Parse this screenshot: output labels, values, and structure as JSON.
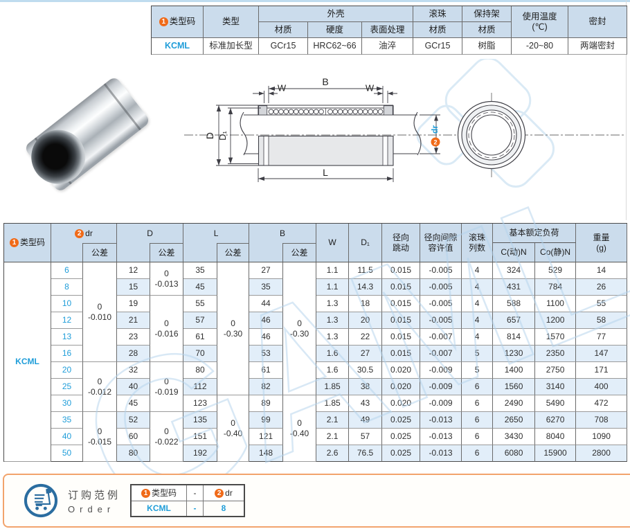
{
  "colors": {
    "accent_blue": "#1f9dd9",
    "badge_orange": "#f06a18",
    "header_bg": "#cbdcec",
    "stripe_bg": "#e2eef9",
    "order_border": "#f2a36c",
    "cart_blue": "#2b6da0"
  },
  "spec_table": {
    "badge1": "1",
    "h_type_code": "类型码",
    "h_type": "类型",
    "h_shell": "外壳",
    "h_material": "材质",
    "h_hardness": "硬度",
    "h_surface": "表面处理",
    "h_ball": "滚珠",
    "h_cage": "保持架",
    "h_temp": "使用温度\n(℃)",
    "h_seal": "密封",
    "type_code": "KCML",
    "type": "标准加长型",
    "shell_material": "GCr15",
    "hardness": "HRC62~66",
    "surface": "油淬",
    "ball_material": "GCr15",
    "cage_material": "树脂",
    "temp": "-20~80",
    "seal": "两端密封"
  },
  "drawing": {
    "dim_B": "B",
    "dim_W_left": "W",
    "dim_W_right": "W",
    "dim_D": "D",
    "dim_D1": "D₁",
    "dim_L": "L",
    "dim_dr": "dr",
    "badge2": "2"
  },
  "main_table": {
    "badge1": "1",
    "badge2": "2",
    "h_type_code": "类型码",
    "h_dr": "dr",
    "h_tol": "公差",
    "h_D": "D",
    "h_L": "L",
    "h_B": "B",
    "h_W": "W",
    "h_D1": "D₁",
    "h_runout": "径向\n跳动",
    "h_clearance": "径向间隙\n容许值",
    "h_ball_rows": "滚珠\n列数",
    "h_load": "基本额定负荷",
    "h_load_dyn": "C(动)N",
    "h_load_stat": "Co(静)N",
    "h_weight": "重量\n(g)",
    "type_code": "KCML",
    "rows": [
      [
        "6",
        "12",
        "35",
        "27",
        "1.1",
        "11.5",
        "0.015",
        "-0.005",
        "4",
        "324",
        "529",
        "14"
      ],
      [
        "8",
        "15",
        "45",
        "35",
        "1.1",
        "14.3",
        "0.015",
        "-0.005",
        "4",
        "431",
        "784",
        "26"
      ],
      [
        "10",
        "19",
        "55",
        "44",
        "1.3",
        "18",
        "0.015",
        "-0.005",
        "4",
        "588",
        "1100",
        "55"
      ],
      [
        "12",
        "21",
        "57",
        "46",
        "1.3",
        "20",
        "0.015",
        "-0.005",
        "4",
        "657",
        "1200",
        "58"
      ],
      [
        "13",
        "23",
        "61",
        "46",
        "1.3",
        "22",
        "0.015",
        "-0.007",
        "4",
        "814",
        "1570",
        "77"
      ],
      [
        "16",
        "28",
        "70",
        "53",
        "1.6",
        "27",
        "0.015",
        "-0.007",
        "5",
        "1230",
        "2350",
        "147"
      ],
      [
        "20",
        "32",
        "80",
        "61",
        "1.6",
        "30.5",
        "0.020",
        "-0.009",
        "5",
        "1400",
        "2750",
        "171"
      ],
      [
        "25",
        "40",
        "112",
        "82",
        "1.85",
        "38",
        "0.020",
        "-0.009",
        "6",
        "1560",
        "3140",
        "400"
      ],
      [
        "30",
        "45",
        "123",
        "89",
        "1.85",
        "43",
        "0.020",
        "-0.009",
        "6",
        "2490",
        "5490",
        "472"
      ],
      [
        "35",
        "52",
        "135",
        "99",
        "2.1",
        "49",
        "0.025",
        "-0.013",
        "6",
        "2650",
        "6270",
        "708"
      ],
      [
        "40",
        "60",
        "151",
        "121",
        "2.1",
        "57",
        "0.025",
        "-0.013",
        "6",
        "3430",
        "8040",
        "1090"
      ],
      [
        "50",
        "80",
        "192",
        "148",
        "2.6",
        "76.5",
        "0.025",
        "-0.013",
        "6",
        "6080",
        "15900",
        "2800"
      ]
    ],
    "tol_dr": [
      {
        "span": 6,
        "text": "0\n-0.010"
      },
      {
        "span": 3,
        "text": "0\n-0.012"
      },
      {
        "span": 3,
        "text": "0\n-0.015"
      }
    ],
    "tol_D": [
      {
        "span": 2,
        "text": "0\n-0.013"
      },
      {
        "span": 4,
        "text": "0\n-0.016"
      },
      {
        "span": 3,
        "text": "0\n-0.019"
      },
      {
        "span": 3,
        "text": "0\n-0.022"
      }
    ],
    "tol_L": [
      {
        "span": 8,
        "text": "0\n-0.30"
      },
      {
        "span": 4,
        "text": "0\n-0.40"
      }
    ],
    "tol_B": [
      {
        "span": 8,
        "text": "0\n-0.30"
      },
      {
        "span": 4,
        "text": "0\n-0.40"
      }
    ]
  },
  "order": {
    "title_cn": "订购范例",
    "title_en": "Order",
    "badge1": "1",
    "badge2": "2",
    "h_code": "类型码",
    "sep": "-",
    "h_dr": "dr",
    "code": "KCML",
    "sep2": "-",
    "dr": "8"
  },
  "watermark": "GAML"
}
